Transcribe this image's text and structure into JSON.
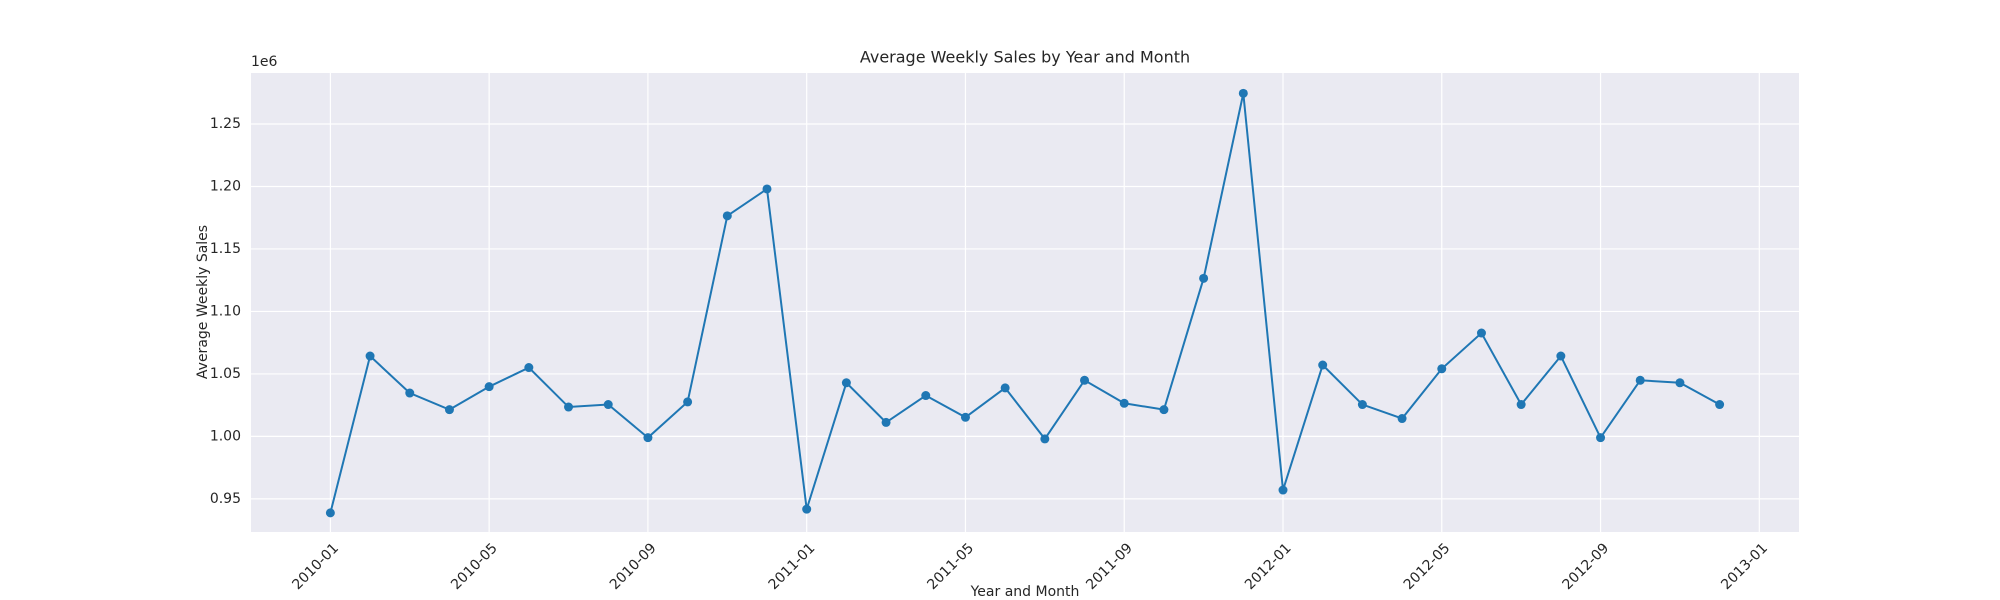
{
  "chart_data": {
    "type": "line",
    "title": "Average Weekly Sales by Year and Month",
    "x_label": "Year and Month",
    "y_label": "Average Weekly Sales",
    "y_offset_label": "1e6",
    "x": [
      "2010-01",
      "2010-02",
      "2010-03",
      "2010-04",
      "2010-05",
      "2010-06",
      "2010-07",
      "2010-08",
      "2010-09",
      "2010-10",
      "2010-11",
      "2010-12",
      "2011-01",
      "2011-02",
      "2011-03",
      "2011-04",
      "2011-05",
      "2011-06",
      "2011-07",
      "2011-08",
      "2011-09",
      "2011-10",
      "2011-11",
      "2011-12",
      "2012-01",
      "2012-02",
      "2012-03",
      "2012-04",
      "2012-05",
      "2012-06",
      "2012-07",
      "2012-08",
      "2012-09",
      "2012-10",
      "2012-11",
      "2012-12"
    ],
    "values": [
      938800,
      1064300,
      1034700,
      1021400,
      1039800,
      1055100,
      1023500,
      1025500,
      999000,
      1027600,
      1176500,
      1198000,
      941800,
      1042900,
      1011200,
      1032700,
      1015300,
      1038800,
      998000,
      1044900,
      1026500,
      1021400,
      1126500,
      1274500,
      957100,
      1057100,
      1025500,
      1014300,
      1054100,
      1082700,
      1025500,
      1064300,
      999000,
      1044900,
      1042900,
      1025500
    ],
    "color": "#1f77b4",
    "xlim": [
      "2009-11",
      "2013-02"
    ],
    "xticks": [
      "2010-01",
      "2010-05",
      "2010-09",
      "2011-01",
      "2011-05",
      "2011-09",
      "2012-01",
      "2012-05",
      "2012-09",
      "2013-01"
    ],
    "ylim": [
      923500,
      1290800
    ],
    "yticks": [
      {
        "value": 950000,
        "label": "0.95"
      },
      {
        "value": 1000000,
        "label": "1.00"
      },
      {
        "value": 1050000,
        "label": "1.05"
      },
      {
        "value": 1100000,
        "label": "1.10"
      },
      {
        "value": 1150000,
        "label": "1.15"
      },
      {
        "value": 1200000,
        "label": "1.20"
      },
      {
        "value": 1250000,
        "label": "1.25"
      }
    ],
    "grid": true
  }
}
